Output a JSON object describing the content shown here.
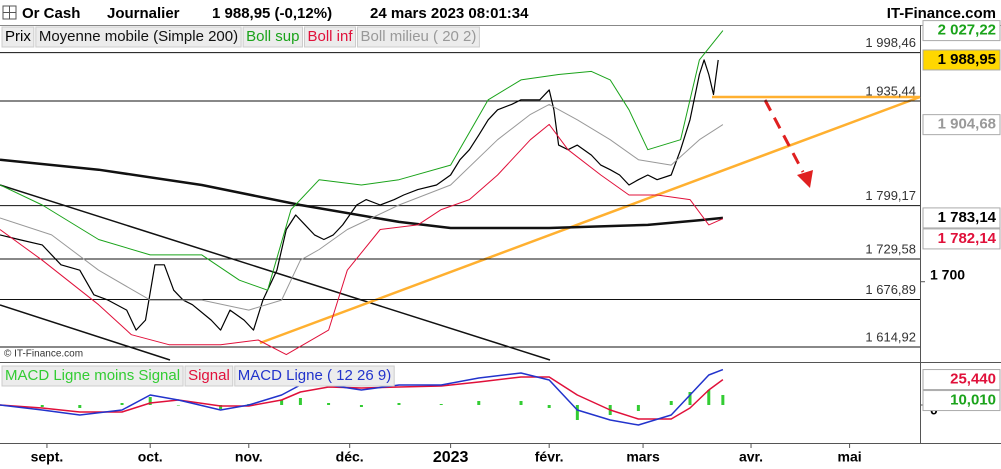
{
  "header": {
    "instrument": "Or Cash",
    "period": "Journalier",
    "quote": "1 988,95 (-0,12%)",
    "datetime": "24 mars 2023 08:01:34",
    "brand": "IT-Finance.com",
    "watermark": "© IT-Finance.com"
  },
  "chart_data": [
    {
      "type": "line",
      "xlim": [
        0,
        196
      ],
      "ylim": [
        1598,
        2028
      ],
      "xticks": [
        {
          "value": 10,
          "label": "sept."
        },
        {
          "value": 32,
          "label": "oct."
        },
        {
          "value": 53,
          "label": "nov."
        },
        {
          "value": 74.5,
          "label": "déc."
        },
        {
          "value": 96,
          "label": "2023"
        },
        {
          "value": 117,
          "label": "févr."
        },
        {
          "value": 137,
          "label": "mars"
        },
        {
          "value": 160,
          "label": "avr."
        },
        {
          "value": 181,
          "label": "mai"
        }
      ],
      "yticks": [
        {
          "value": 1700,
          "label": "1 700"
        }
      ],
      "levels": [
        {
          "value": 1998.46,
          "label": "1 998,46"
        },
        {
          "value": 1935.44,
          "label": "1 935,44"
        },
        {
          "value": 1799.17,
          "label": "1 799,17"
        },
        {
          "value": 1729.58,
          "label": "1 729,58"
        },
        {
          "value": 1676.89,
          "label": "1 676,89"
        },
        {
          "value": 1614.92,
          "label": "1 614,92"
        }
      ],
      "badges": [
        {
          "value": 2027.22,
          "label": "2 027,22",
          "color": "#1aa31a"
        },
        {
          "value": 1988.95,
          "label": "1 988,95",
          "color": "#000000",
          "background": "#ffd700"
        },
        {
          "value": 1904.68,
          "label": "1 904,68",
          "color": "#999999"
        },
        {
          "value": 1783.14,
          "label": "1 783,14",
          "color": "#000000"
        },
        {
          "value": 1782.14,
          "label": "1 782,14",
          "color": "#e0103a"
        }
      ],
      "series": [
        {
          "name": "Prix",
          "color": "#000000",
          "line_width": 1.2,
          "x": [
            0,
            4,
            9,
            13,
            17,
            20,
            23,
            27,
            29,
            31,
            33,
            35,
            37,
            39,
            41,
            45,
            47,
            49,
            52,
            54,
            56,
            59,
            61,
            63,
            65,
            67,
            69,
            71,
            73,
            76,
            78,
            81,
            84,
            86,
            89,
            93,
            96,
            98,
            100,
            102,
            104,
            106,
            109,
            111,
            113,
            115,
            117,
            118,
            119,
            121,
            123,
            126,
            128,
            130,
            132,
            134,
            136,
            138,
            140,
            143,
            145,
            147,
            149,
            150,
            151,
            152,
            153
          ],
          "values": [
            1761,
            1755,
            1748,
            1722,
            1715,
            1683,
            1676,
            1663,
            1637,
            1650,
            1722,
            1722,
            1689,
            1676,
            1670,
            1650,
            1637,
            1663,
            1650,
            1637,
            1676,
            1715,
            1768,
            1787,
            1774,
            1761,
            1755,
            1761,
            1774,
            1800,
            1807,
            1800,
            1807,
            1813,
            1820,
            1826,
            1839,
            1859,
            1872,
            1891,
            1911,
            1924,
            1931,
            1937,
            1937,
            1937,
            1950,
            1924,
            1878,
            1872,
            1878,
            1865,
            1852,
            1846,
            1839,
            1826,
            1833,
            1839,
            1833,
            1839,
            1872,
            1911,
            1970,
            1989,
            1970,
            1944,
            1988.95
          ]
        },
        {
          "name": "Moyenne mobile (Simple 200)",
          "color": "#111111",
          "line_width": 2.5,
          "x": [
            0,
            21,
            43,
            64,
            85,
            96,
            117,
            138,
            149,
            154
          ],
          "values": [
            1859,
            1846,
            1826,
            1800,
            1778,
            1770,
            1770,
            1774,
            1780,
            1783.14
          ]
        },
        {
          "name": "Boll sup",
          "color": "#1aa31a",
          "line_width": 1,
          "x": [
            0,
            9,
            21,
            32,
            43,
            51,
            57,
            62,
            68,
            77,
            85,
            96,
            104,
            111,
            119,
            126,
            130,
            134,
            138,
            145,
            149,
            154
          ],
          "values": [
            1826,
            1800,
            1755,
            1735,
            1735,
            1702,
            1689,
            1794,
            1833,
            1826,
            1833,
            1852,
            1937,
            1963,
            1970,
            1974,
            1963,
            1924,
            1872,
            1885,
            1989,
            2027.22
          ]
        },
        {
          "name": "Boll inf",
          "color": "#e0103a",
          "line_width": 1,
          "x": [
            0,
            9,
            21,
            28,
            36,
            47,
            55,
            61,
            70,
            74,
            81,
            89,
            94,
            100,
            106,
            113,
            117,
            121,
            128,
            134,
            140,
            147,
            151,
            154
          ],
          "values": [
            1768,
            1728,
            1670,
            1631,
            1618,
            1618,
            1624,
            1605,
            1637,
            1715,
            1768,
            1774,
            1794,
            1807,
            1839,
            1885,
            1905,
            1872,
            1839,
            1813,
            1813,
            1807,
            1774,
            1782.14
          ]
        },
        {
          "name": "Boll milieu ( 20 2)",
          "color": "#999999",
          "line_width": 1,
          "x": [
            0,
            11,
            21,
            32,
            43,
            53,
            60,
            64,
            68,
            74,
            85,
            96,
            106,
            113,
            117,
            123,
            130,
            136,
            143,
            149,
            154
          ],
          "values": [
            1783,
            1761,
            1715,
            1676,
            1676,
            1663,
            1676,
            1728,
            1742,
            1768,
            1800,
            1826,
            1885,
            1918,
            1931,
            1911,
            1885,
            1859,
            1852,
            1885,
            1904.68
          ]
        }
      ]
    },
    {
      "type": "line",
      "xlim": [
        0,
        196
      ],
      "ylim": [
        -35,
        40
      ],
      "yticks": [
        0
      ],
      "badges": [
        {
          "value": 25.44,
          "label": "25,440",
          "color": "#e0103a"
        },
        {
          "value": 10.01,
          "label": "10,010",
          "color": "#1aa31a"
        }
      ],
      "series": [
        {
          "name": "MACD Ligne moins Signal",
          "type": "bar",
          "color": "#33cc33",
          "x": [
            0,
            9,
            17,
            26,
            32,
            38,
            47,
            53,
            60,
            64,
            70,
            77,
            85,
            94,
            102,
            111,
            117,
            123,
            130,
            136,
            143,
            147,
            151,
            154
          ],
          "values": [
            0,
            -2,
            -3,
            2,
            8,
            0,
            -4,
            1,
            5,
            7,
            2,
            -2,
            2,
            1,
            4,
            4,
            -3,
            -15,
            -10,
            -6,
            4,
            13,
            15,
            10.01
          ]
        },
        {
          "name": "Signal",
          "color": "#e0103a",
          "x": [
            0,
            9,
            17,
            26,
            32,
            38,
            47,
            53,
            60,
            64,
            70,
            77,
            85,
            94,
            102,
            111,
            117,
            123,
            130,
            136,
            143,
            147,
            151,
            154
          ],
          "values": [
            0,
            -3,
            -7,
            -7,
            2,
            5,
            -1,
            -1,
            5,
            13,
            18,
            17,
            18,
            19,
            23,
            28,
            28,
            10,
            -5,
            -14,
            -14,
            -3,
            15,
            25.44
          ]
        },
        {
          "name": "MACD Ligne ( 12 26 9)",
          "color": "#2233cc",
          "x": [
            0,
            9,
            17,
            26,
            32,
            38,
            47,
            53,
            60,
            64,
            70,
            77,
            85,
            94,
            102,
            111,
            117,
            123,
            130,
            136,
            143,
            147,
            151,
            154
          ],
          "values": [
            0,
            -5,
            -10,
            -5,
            10,
            5,
            -5,
            0,
            10,
            20,
            20,
            15,
            20,
            20,
            27,
            32,
            25,
            -5,
            -15,
            -20,
            -10,
            10,
            30,
            35.45
          ]
        }
      ]
    }
  ]
}
